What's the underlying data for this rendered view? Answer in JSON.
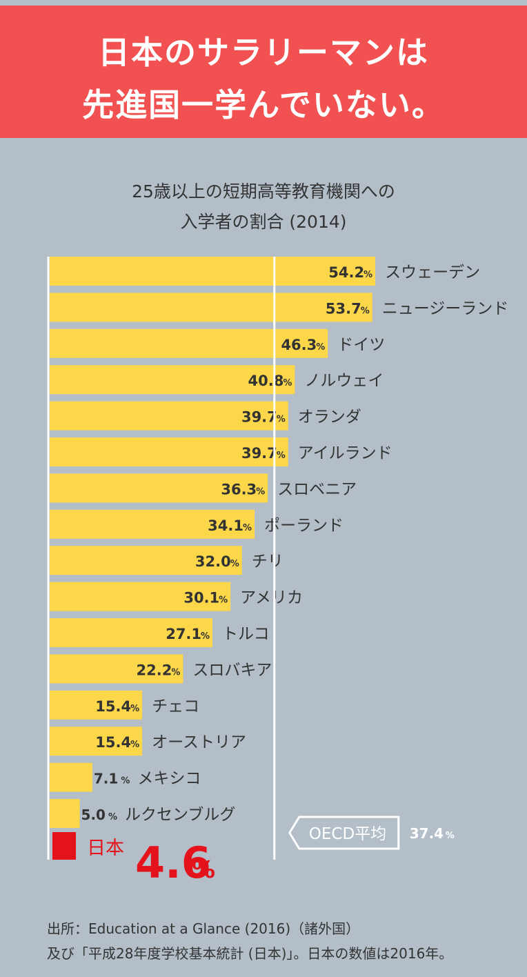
{
  "banner": {
    "line1": "日本のサラリーマンは",
    "line2": "先進国一学んでいない。"
  },
  "colors": {
    "background": "#b3bec8",
    "banner": "#f25151",
    "bar": "#fcd74a",
    "japan": "#e3121b",
    "axis": "#ffffff",
    "text": "#333333"
  },
  "chart_data": {
    "type": "bar",
    "title_line1": "25歳以上の短期高等教育機関への",
    "title_line2": "入学者の割合 (2014)",
    "orientation": "horizontal",
    "unit": "%",
    "categories": [
      "スウェーデン",
      "ニュージーランド",
      "ドイツ",
      "ノルウェイ",
      "オランダ",
      "アイルランド",
      "スロベニア",
      "ポーランド",
      "チリ",
      "アメリカ",
      "トルコ",
      "スロバキア",
      "チェコ",
      "オーストリア",
      "メキシコ",
      "ルクセンブルグ"
    ],
    "values": [
      54.2,
      53.7,
      46.3,
      40.8,
      39.7,
      39.7,
      36.3,
      34.1,
      32.0,
      30.1,
      27.1,
      22.2,
      15.4,
      15.4,
      7.1,
      5.0
    ],
    "value_labels": [
      "54.2",
      "53.7",
      "46.3",
      "40.8",
      "39.7",
      "39.7",
      "36.3",
      "34.1",
      "32.0",
      "30.1",
      "27.1",
      "22.2",
      "15.4",
      "15.4",
      "7.1",
      "5.0"
    ],
    "highlight": {
      "label": "日本",
      "value": 4.6,
      "value_label": "4.6"
    },
    "reference_line": {
      "label": "OECD平均",
      "value": 37.4,
      "value_label": "37.4",
      "unit": "%"
    },
    "grid": false
  },
  "footer": {
    "line1": "出所：Education at a Glance (2016)（諸外国）",
    "line2": "及び「平成28年度学校基本統計 (日本)」。日本の数値は2016年。"
  }
}
